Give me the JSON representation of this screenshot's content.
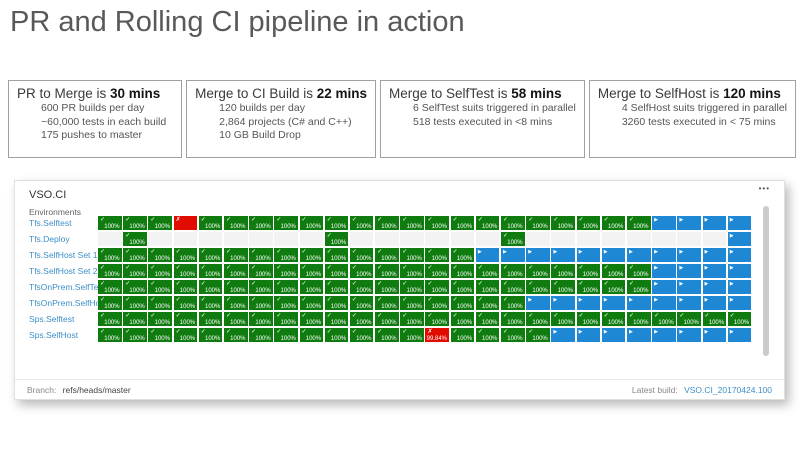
{
  "title": "PR and Rolling CI pipeline in action",
  "stat_boxes": [
    {
      "heading": "PR to Merge is",
      "value": "30 mins",
      "lines": [
        "600 PR builds per day",
        "~60,000 tests in each build",
        "175 pushes to master"
      ]
    },
    {
      "heading": "Merge to CI Build is",
      "value": "22 mins",
      "lines": [
        "120 builds per day",
        "2,864 projects (C# and C++)",
        "10 GB Build Drop"
      ]
    },
    {
      "heading": "Merge to SelfTest is",
      "value": "58 mins",
      "lines": [
        "6 SelfTest suits triggered in parallel",
        "518 tests executed in <8 mins"
      ]
    },
    {
      "heading": "Merge to SelfHost is",
      "value": "120 mins",
      "lines": [
        "4 SelfHost suits triggered in parallel",
        "3260 tests executed in < 75 mins"
      ]
    }
  ],
  "panel": {
    "title": "VSO.CI",
    "menu_icon": "•••",
    "environments_label": "Environments",
    "columns": 26,
    "cell_labels": {
      "check": "✓",
      "fail": "✗",
      "play": "▶",
      "pass_pct": "100%",
      "fail_pct": "99.84%"
    },
    "rows": [
      {
        "label": "Tfs.Selftest",
        "pattern": "gggrggggggggggggggggggbbbb"
      },
      {
        "label": "Tfs.Deploy",
        "pattern": "egeeeeeeegeeeeeegeeeeeeeeb"
      },
      {
        "label": "Tfs.SelfHost Set 1",
        "pattern": "gggggggggggggggbbbbbbbbbbb"
      },
      {
        "label": "Tfs.SelfHost Set 2",
        "pattern": "ggggggggggggggggggggggbbbb"
      },
      {
        "label": "TfsOnPrem.SelfTest",
        "pattern": "ggggggggggggggggggggggbbbb"
      },
      {
        "label": "TfsOnPrem.SelfHost",
        "pattern": "gggggggggggggggggbbbbbbbbb"
      },
      {
        "label": "Sps.Selftest",
        "pattern": "gggggggggggggggggggggggggg"
      },
      {
        "label": "Sps.SelfHost",
        "pattern": "gggggggggggggxggggbbbbbbbb"
      }
    ],
    "footer": {
      "branch_label": "Branch:",
      "branch_value": "refs/heads/master",
      "latest_build_label": "Latest build:",
      "latest_build_value": "VSO.CI_20170424.100"
    }
  },
  "colors": {
    "green": "#107c10",
    "red": "#e10b00",
    "blue": "#1e88d5",
    "env_link": "#3e8fc9"
  }
}
